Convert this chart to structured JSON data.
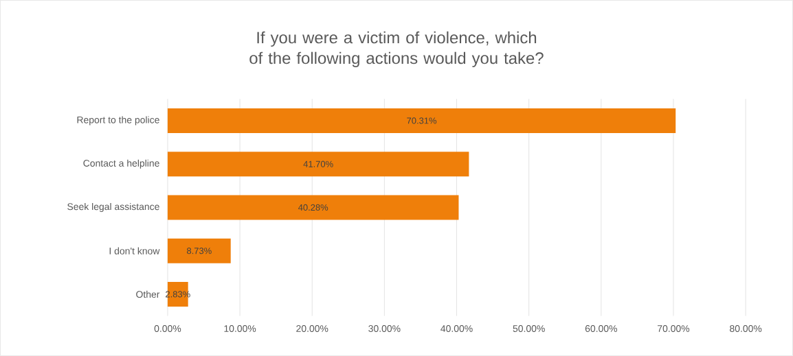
{
  "chart_data": {
    "type": "bar",
    "orientation": "horizontal",
    "title": "If you were a victim of violence, which of the following actions would you take?",
    "categories": [
      "Report to the police",
      "Contact a helpline",
      "Seek legal assistance",
      "I don't know",
      "Other"
    ],
    "values": [
      70.31,
      41.7,
      40.28,
      8.73,
      2.83
    ],
    "value_labels": [
      "70.31%",
      "41.70%",
      "40.28%",
      "8.73%",
      "2.83%"
    ],
    "color": "#ef7f0a",
    "xlim": [
      0,
      80
    ],
    "xticks": [
      {
        "value": 0,
        "label": "0.00%"
      },
      {
        "value": 10,
        "label": "10.00%"
      },
      {
        "value": 20,
        "label": "20.00%"
      },
      {
        "value": 30,
        "label": "30.00%"
      },
      {
        "value": 40,
        "label": "40.00%"
      },
      {
        "value": 50,
        "label": "50.00%"
      },
      {
        "value": 60,
        "label": "60.00%"
      },
      {
        "value": 70,
        "label": "70.00%"
      },
      {
        "value": 80,
        "label": "80.00%"
      }
    ],
    "grid": "x"
  }
}
